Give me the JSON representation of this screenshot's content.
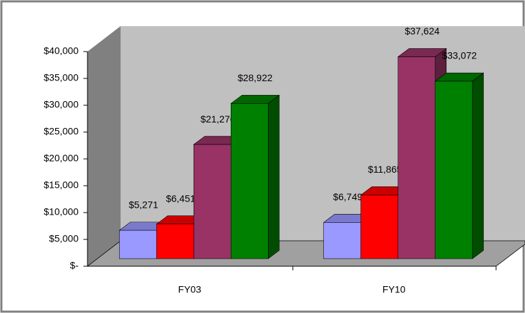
{
  "chart_data": {
    "type": "bar3d",
    "categories": [
      "FY03",
      "FY10"
    ],
    "series": [
      {
        "color": "#9999ff",
        "values": [
          5271,
          6749
        ],
        "value_labels": [
          "$5,271",
          "$6,749"
        ]
      },
      {
        "color": "#ff0000",
        "values": [
          6451,
          11865
        ],
        "value_labels": [
          "$6,451",
          "$11,865"
        ]
      },
      {
        "color": "#993366",
        "values": [
          21276,
          37624
        ],
        "value_labels": [
          "$21,276",
          "$37,624"
        ]
      },
      {
        "color": "#008000",
        "values": [
          28922,
          33072
        ],
        "value_labels": [
          "$28,922",
          "$33,072"
        ]
      }
    ],
    "ylim": [
      0,
      40000
    ],
    "yticks": [
      {
        "value": 0,
        "label": "$-"
      },
      {
        "value": 5000,
        "label": "$5,000"
      },
      {
        "value": 10000,
        "label": "$10,000"
      },
      {
        "value": 15000,
        "label": "$15,000"
      },
      {
        "value": 20000,
        "label": "$20,000"
      },
      {
        "value": 25000,
        "label": "$25,000"
      },
      {
        "value": 30000,
        "label": "$30,000"
      },
      {
        "value": 35000,
        "label": "$35,000"
      },
      {
        "value": 40000,
        "label": "$40,000"
      }
    ]
  }
}
